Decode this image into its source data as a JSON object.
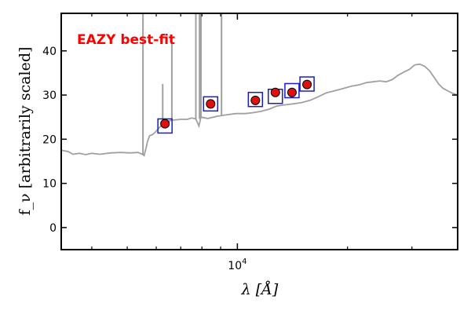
{
  "chart_data": {
    "type": "line",
    "xscale": "log",
    "xlim": [
      3300,
      40000
    ],
    "ylim": [
      -5,
      48.5
    ],
    "xlabel": "λ [Å]",
    "ylabel": "f_ν [arbitrarily scaled]",
    "annotation": "EAZY best-fit",
    "grid": false,
    "yticks": [
      0,
      10,
      20,
      30,
      40
    ],
    "xticks_major": [
      {
        "value": 10000,
        "label_base": "10",
        "label_exp": "4"
      }
    ],
    "xticks_minor": [
      4000,
      5000,
      6000,
      7000,
      8000,
      9000,
      20000,
      30000
    ],
    "colors": {
      "model": "#a0a0a0",
      "photometry_fill": "#e01010",
      "photometry_edge": "#000000",
      "model_box": "#1a1acc",
      "annotation": "#ff0000"
    },
    "model_continuum": [
      [
        3300,
        17.5
      ],
      [
        3450,
        17.2
      ],
      [
        3550,
        16.6
      ],
      [
        3700,
        16.8
      ],
      [
        3850,
        16.5
      ],
      [
        4000,
        16.8
      ],
      [
        4200,
        16.6
      ],
      [
        4500,
        16.9
      ],
      [
        4800,
        17.0
      ],
      [
        5100,
        16.9
      ],
      [
        5350,
        17.0
      ],
      [
        5500,
        16.6
      ],
      [
        5560,
        16.3
      ],
      [
        5620,
        17.8
      ],
      [
        5680,
        19.5
      ],
      [
        5760,
        20.8
      ],
      [
        5850,
        21.0
      ],
      [
        5950,
        21.5
      ],
      [
        6100,
        22.5
      ],
      [
        6300,
        23.8
      ],
      [
        6600,
        24.3
      ],
      [
        7000,
        24.5
      ],
      [
        7300,
        24.5
      ],
      [
        7500,
        24.8
      ],
      [
        7700,
        24.6
      ],
      [
        7850,
        23.0
      ],
      [
        7950,
        25.0
      ],
      [
        8300,
        24.7
      ],
      [
        8800,
        25.2
      ],
      [
        9300,
        25.5
      ],
      [
        9900,
        25.8
      ],
      [
        10500,
        25.8
      ],
      [
        11000,
        26.0
      ],
      [
        11600,
        26.3
      ],
      [
        12200,
        26.8
      ],
      [
        12800,
        27.5
      ],
      [
        13500,
        27.8
      ],
      [
        14200,
        28.0
      ],
      [
        15000,
        28.3
      ],
      [
        15800,
        28.8
      ],
      [
        16500,
        29.5
      ],
      [
        17500,
        30.5
      ],
      [
        18500,
        31.0
      ],
      [
        19500,
        31.5
      ],
      [
        20500,
        32.0
      ],
      [
        21500,
        32.3
      ],
      [
        22500,
        32.8
      ],
      [
        23500,
        33.0
      ],
      [
        24500,
        33.2
      ],
      [
        25500,
        33.0
      ],
      [
        26500,
        33.5
      ],
      [
        27500,
        34.5
      ],
      [
        28500,
        35.2
      ],
      [
        29500,
        35.8
      ],
      [
        30500,
        36.8
      ],
      [
        31500,
        37.0
      ],
      [
        32500,
        36.5
      ],
      [
        33500,
        35.5
      ],
      [
        34500,
        34.0
      ],
      [
        35500,
        32.5
      ],
      [
        36500,
        31.5
      ],
      [
        37500,
        31.0
      ],
      [
        38500,
        30.5
      ],
      [
        40000,
        30.0
      ]
    ],
    "model_emission_lines": [
      {
        "x": 5520,
        "base": 16.5,
        "top": 48.5
      },
      {
        "x": 6250,
        "base": 23.5,
        "top": 32.5
      },
      {
        "x": 6620,
        "base": 24.3,
        "top": 43.0
      },
      {
        "x": 7700,
        "base": 24.6,
        "top": 48.5
      },
      {
        "x": 7880,
        "base": 24.6,
        "top": 48.5
      },
      {
        "x": 7950,
        "base": 25.0,
        "top": 48.5
      },
      {
        "x": 9050,
        "base": 25.4,
        "top": 48.5
      }
    ],
    "photometry": [
      {
        "x": 6340,
        "y": 23.5
      },
      {
        "x": 8450,
        "y": 28.0
      },
      {
        "x": 11200,
        "y": 28.8
      },
      {
        "x": 12700,
        "y": 30.6
      },
      {
        "x": 14100,
        "y": 30.6
      },
      {
        "x": 15500,
        "y": 32.4
      }
    ],
    "model_photometry": [
      {
        "x": 6340,
        "y": 23.0
      },
      {
        "x": 8450,
        "y": 28.0
      },
      {
        "x": 11200,
        "y": 29.0
      },
      {
        "x": 12700,
        "y": 29.7
      },
      {
        "x": 14100,
        "y": 31.0
      },
      {
        "x": 15500,
        "y": 32.5
      }
    ]
  }
}
